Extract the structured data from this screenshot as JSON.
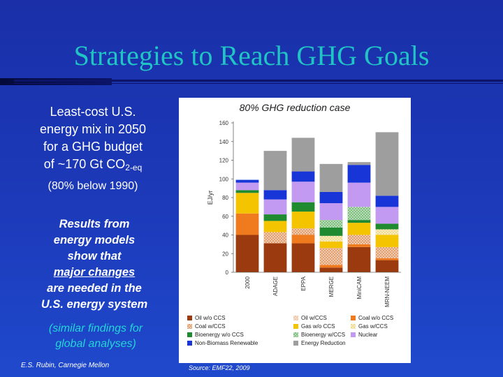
{
  "slide": {
    "title": "Strategies to Reach GHG Goals",
    "lead_lines": [
      "Least-cost U.S.",
      "energy mix in 2050",
      "for a GHG budget"
    ],
    "lead_last_prefix": "of ~170 Gt CO",
    "lead_last_sub": "2-eq",
    "lead_note": "(80% below 1990)",
    "results_lines": [
      "Results from",
      "energy models",
      "show that"
    ],
    "results_underlined": "major changes",
    "results_lines2": [
      "are needed in the",
      "U.S. energy system"
    ],
    "similar_lines": [
      "(similar findings for",
      "global analyses)"
    ],
    "author": "E.S. Rubin, Carnegie Mellon",
    "source": "Source: EMF22, 2009"
  },
  "chart_data": {
    "type": "bar",
    "stacked": true,
    "title": "80% GHG reduction case",
    "ylabel": "EJ/yr",
    "ylim": [
      0,
      160
    ],
    "yticks": [
      0,
      20,
      40,
      60,
      80,
      100,
      120,
      140,
      160
    ],
    "categories": [
      "2000",
      "ADAGE",
      "EPPA",
      "MERGE",
      "MiniCAM",
      "MRN-NEEM"
    ],
    "series": [
      {
        "name": "Oil w/o CCS",
        "color": "#9a3a0e",
        "pattern": "solid",
        "values": [
          40,
          31,
          31,
          5,
          27,
          13
        ]
      },
      {
        "name": "Coal w/o CCS",
        "color": "#f07a1e",
        "pattern": "solid",
        "values": [
          23,
          0,
          9,
          3,
          3,
          2
        ]
      },
      {
        "name": "Oil w/CCS",
        "color": "#f0c8a8",
        "pattern": "dots",
        "values": [
          0,
          0,
          0,
          0,
          0,
          0
        ]
      },
      {
        "name": "Coal w/CCS",
        "color": "#e2a070",
        "pattern": "dots",
        "values": [
          0,
          12,
          7,
          18,
          10,
          12
        ]
      },
      {
        "name": "Gas w/o CCS",
        "color": "#f5c400",
        "pattern": "solid",
        "values": [
          22,
          12,
          18,
          7,
          13,
          13
        ]
      },
      {
        "name": "Gas w/CCS",
        "color": "#f0dc90",
        "pattern": "dots",
        "values": [
          0,
          0,
          0,
          6,
          0,
          6
        ]
      },
      {
        "name": "Bioenergy w/o CCS",
        "color": "#1f8a30",
        "pattern": "solid",
        "values": [
          3,
          7,
          10,
          9,
          3,
          6
        ]
      },
      {
        "name": "Bioenergy w/CCS",
        "color": "#7fbf7f",
        "pattern": "dots",
        "values": [
          0,
          0,
          0,
          8,
          14,
          0
        ]
      },
      {
        "name": "Nuclear",
        "color": "#c39af2",
        "pattern": "solid",
        "values": [
          8,
          16,
          22,
          18,
          26,
          18
        ]
      },
      {
        "name": "Non-Biomass Renewable",
        "color": "#1836d8",
        "pattern": "solid",
        "values": [
          3,
          10,
          11,
          12,
          19,
          12
        ]
      },
      {
        "name": "Energy Reduction",
        "color": "#9e9e9e",
        "pattern": "solid",
        "values": [
          0,
          42,
          36,
          30,
          3,
          68
        ]
      }
    ]
  },
  "colors": {
    "background": "#1c3aba",
    "title": "#21c4c4",
    "accent_text": "#23d6d6"
  }
}
